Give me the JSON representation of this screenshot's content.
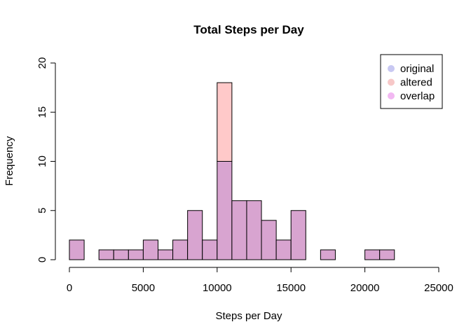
{
  "chart_data": {
    "type": "bar",
    "title": "Total Steps per Day",
    "xlabel": "Steps per Day",
    "ylabel": "Frequency",
    "xlim": [
      0,
      25000
    ],
    "ylim": [
      0,
      20
    ],
    "x_ticks": [
      0,
      5000,
      10000,
      15000,
      20000,
      25000
    ],
    "y_ticks": [
      0,
      5,
      10,
      15,
      20
    ],
    "bin_width": 1000,
    "bin_starts": [
      0,
      1000,
      2000,
      3000,
      4000,
      5000,
      6000,
      7000,
      8000,
      9000,
      10000,
      11000,
      12000,
      13000,
      14000,
      15000,
      16000,
      17000,
      18000,
      19000,
      20000,
      21000
    ],
    "series": [
      {
        "name": "original",
        "values": [
          2,
          0,
          1,
          1,
          1,
          2,
          1,
          2,
          5,
          2,
          10,
          6,
          6,
          4,
          2,
          5,
          0,
          1,
          0,
          0,
          1,
          1
        ]
      },
      {
        "name": "altered",
        "values": [
          2,
          0,
          1,
          1,
          1,
          2,
          1,
          2,
          5,
          2,
          18,
          6,
          6,
          4,
          2,
          5,
          0,
          1,
          0,
          0,
          1,
          1
        ]
      }
    ],
    "legend": {
      "placement": "top-right",
      "entries": [
        {
          "label": "original",
          "color": "#c8c8f2"
        },
        {
          "label": "altered",
          "color": "#f7c8c8"
        },
        {
          "label": "overlap",
          "color": "#f2b8f2"
        }
      ]
    },
    "grid": false,
    "colors": {
      "original": "#bfbfff",
      "altered": "#ffc9c9",
      "overlap": "#d8a4d0"
    }
  }
}
